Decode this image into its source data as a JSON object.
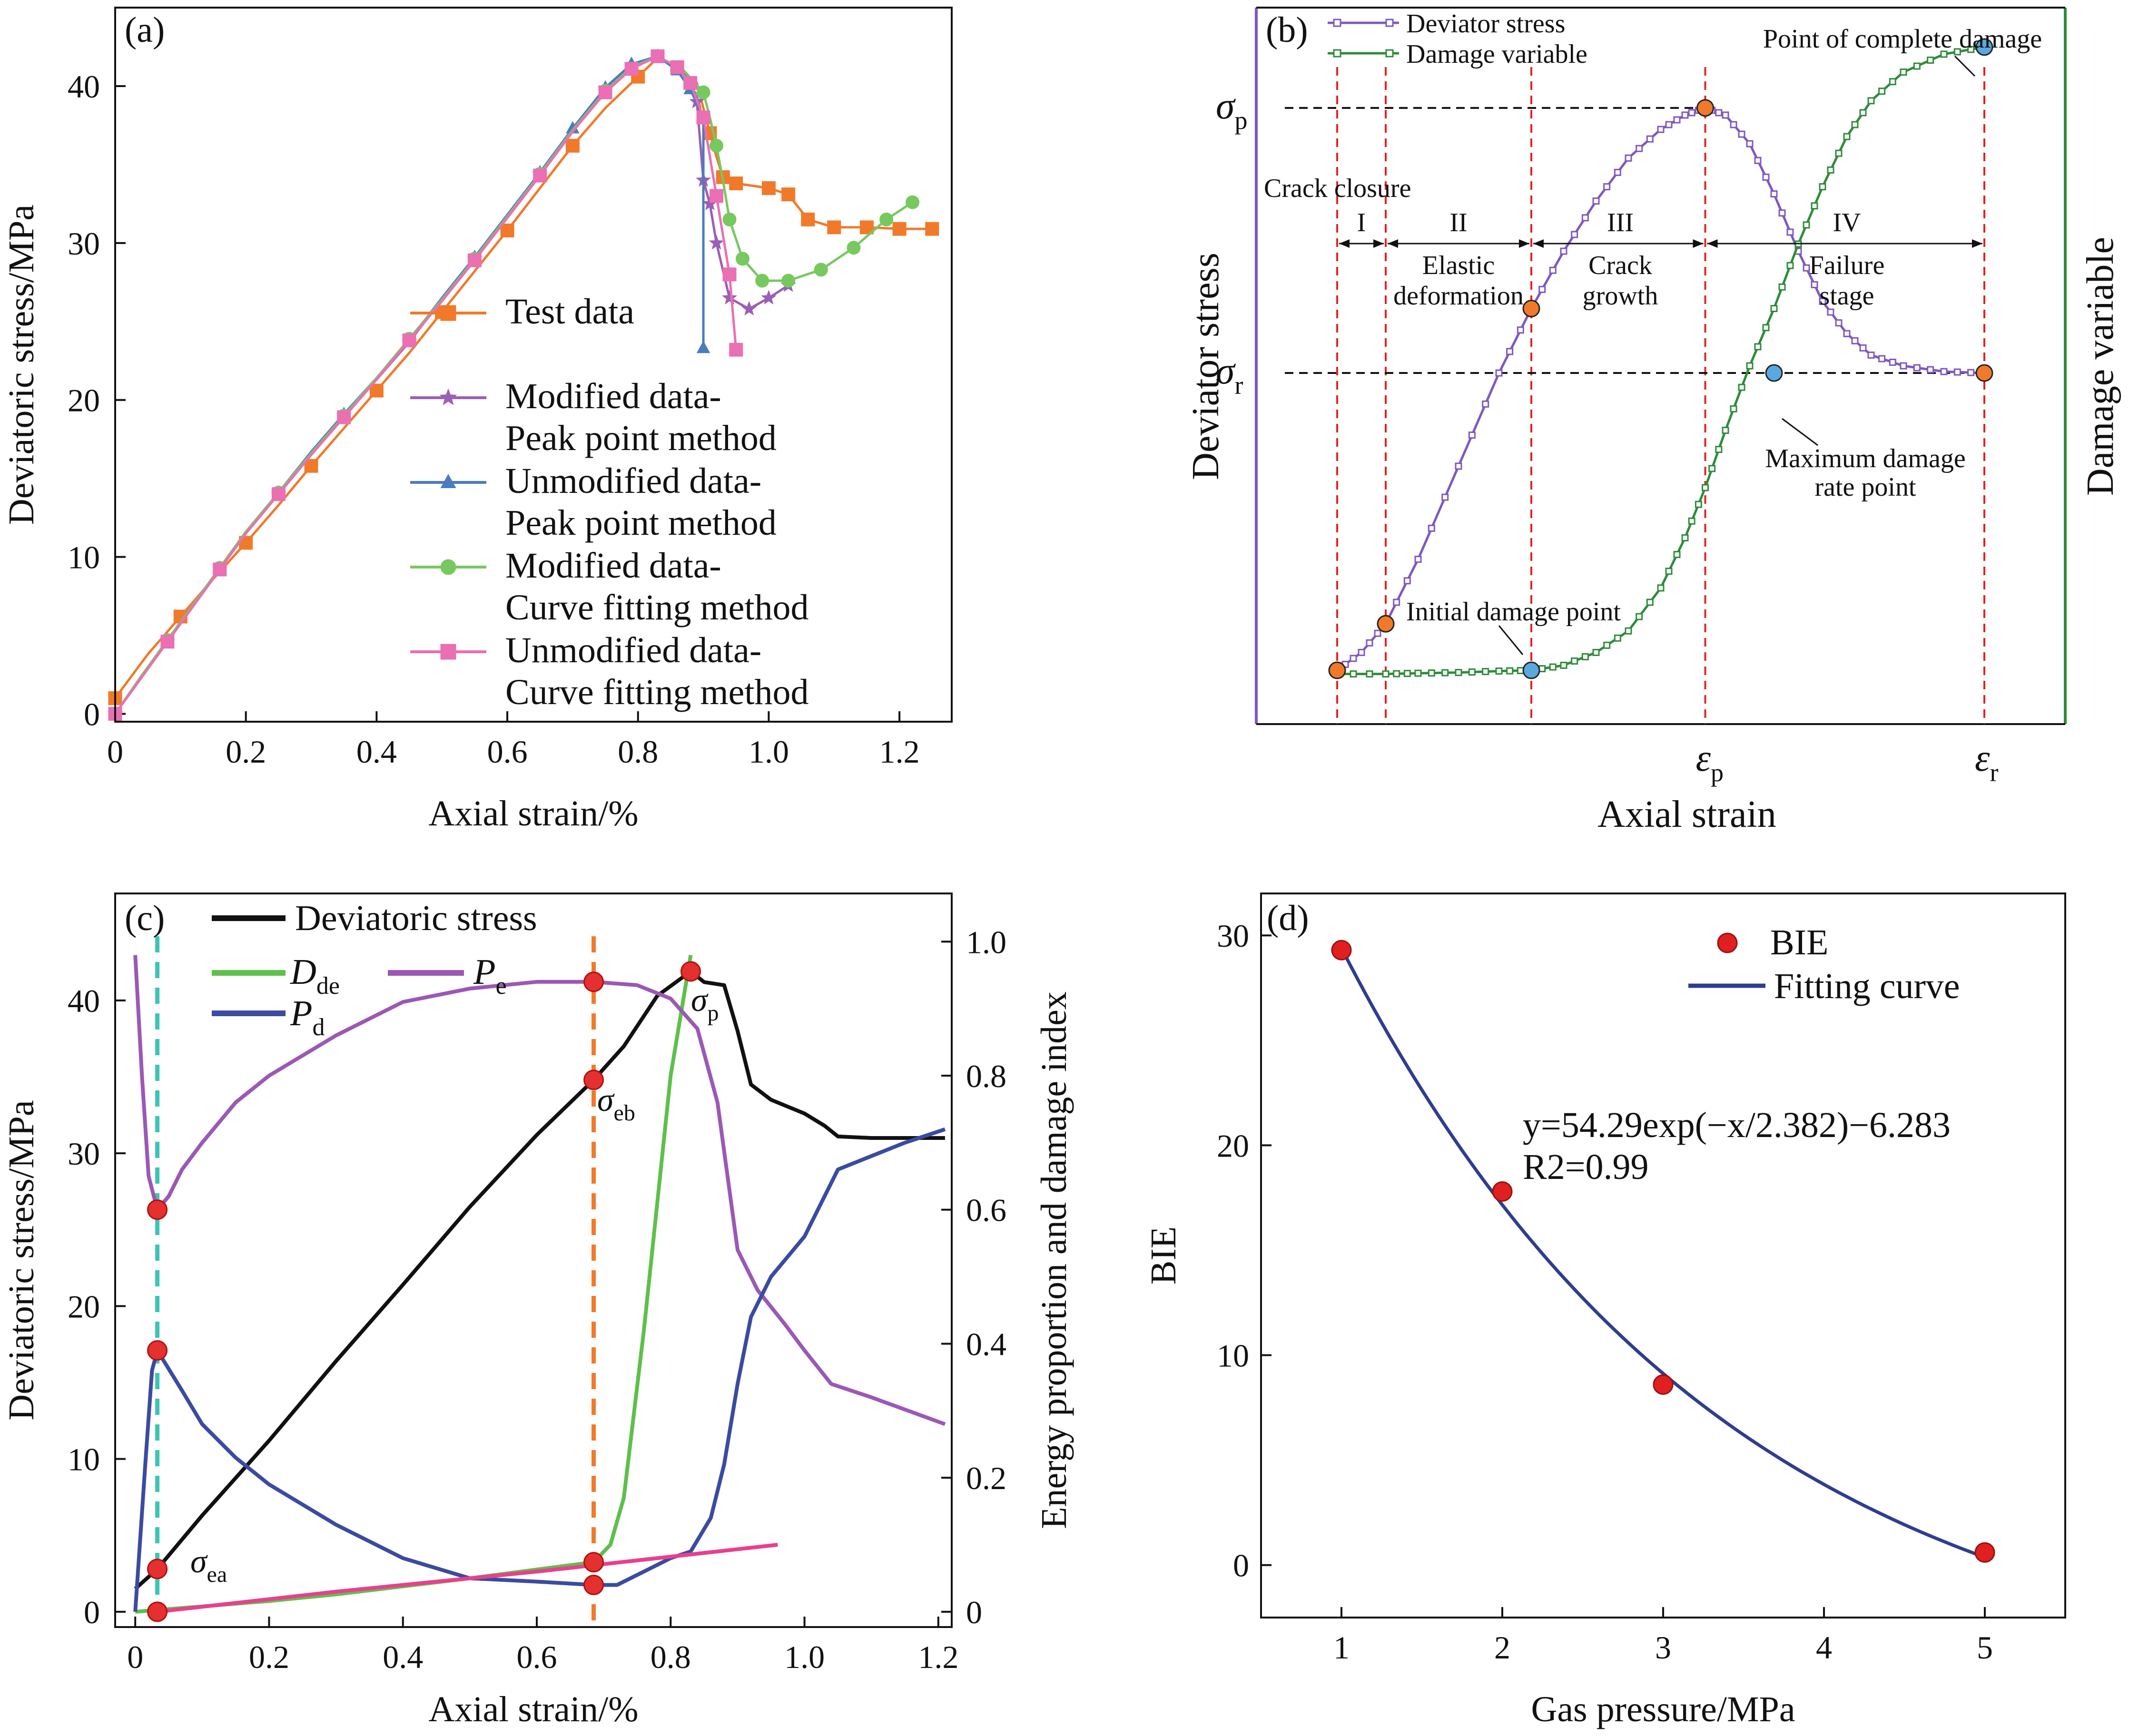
{
  "chart_data": [
    {
      "id": "a",
      "panel_label": "(a)",
      "type": "line",
      "xlabel": "Axial strain/%",
      "ylabel": "Deviatoric stress/MPa",
      "xlim": [
        0,
        1.28
      ],
      "ylim": [
        -0.5,
        45
      ],
      "xticks": [
        "0",
        "0.2",
        "0.4",
        "0.6",
        "0.8",
        "1.0",
        "1.2"
      ],
      "xtick_values": [
        0,
        0.2,
        0.4,
        0.6,
        0.8,
        1.0,
        1.2
      ],
      "yticks": [
        "0",
        "10",
        "20",
        "30",
        "40"
      ],
      "ytick_values": [
        0,
        10,
        20,
        30,
        40
      ],
      "legend": [
        {
          "line1": "Test data",
          "line2": ""
        },
        {
          "line1": "Modified data-",
          "line2": "Peak point method"
        },
        {
          "line1": "Unmodified data-",
          "line2": "Peak point method"
        },
        {
          "line1": "Modified data-",
          "line2": "Curve fitting method"
        },
        {
          "line1": "Unmodified data-",
          "line2": "Curve fitting method"
        }
      ],
      "series": [
        {
          "name": "Test data",
          "color": "#f07a2a",
          "marker": "square",
          "x": [
            0.0,
            0.05,
            0.1,
            0.15,
            0.2,
            0.25,
            0.3,
            0.35,
            0.4,
            0.45,
            0.5,
            0.55,
            0.6,
            0.65,
            0.7,
            0.75,
            0.8,
            0.83,
            0.86,
            0.89,
            0.91,
            0.92,
            0.93,
            0.95,
            1.0,
            1.03,
            1.06,
            1.1,
            1.15,
            1.2,
            1.25
          ],
          "y": [
            1.0,
            3.8,
            6.2,
            8.6,
            10.9,
            13.3,
            15.8,
            18.2,
            20.6,
            23.0,
            25.6,
            28.2,
            30.8,
            33.5,
            36.2,
            38.6,
            40.6,
            41.8,
            41.2,
            40.2,
            37.0,
            35.5,
            34.2,
            33.8,
            33.5,
            33.1,
            31.5,
            31.0,
            31.0,
            30.9,
            30.9
          ]
        },
        {
          "name": "Modified data-Peak point method",
          "color": "#9b5fb5",
          "marker": "star",
          "x": [
            0.0,
            0.04,
            0.08,
            0.12,
            0.16,
            0.2,
            0.25,
            0.3,
            0.35,
            0.4,
            0.45,
            0.5,
            0.55,
            0.6,
            0.65,
            0.7,
            0.75,
            0.79,
            0.83,
            0.87,
            0.89,
            0.9,
            0.91,
            0.92,
            0.94,
            0.97,
            1.0,
            1.03
          ],
          "y": [
            0.0,
            2.3,
            4.6,
            6.9,
            9.2,
            11.5,
            14.0,
            16.6,
            19.0,
            21.3,
            23.7,
            26.4,
            29.0,
            31.7,
            34.4,
            37.2,
            39.8,
            41.3,
            41.9,
            41.0,
            39.0,
            34.0,
            32.5,
            30.0,
            26.5,
            25.8,
            26.5,
            27.3
          ]
        },
        {
          "name": "Unmodified data-Peak point method",
          "color": "#4a7cc0",
          "marker": "triangle",
          "x": [
            0.0,
            0.04,
            0.08,
            0.12,
            0.16,
            0.2,
            0.25,
            0.3,
            0.35,
            0.4,
            0.45,
            0.5,
            0.55,
            0.6,
            0.65,
            0.7,
            0.75,
            0.79,
            0.83,
            0.86,
            0.88,
            0.9,
            0.9
          ],
          "y": [
            0.0,
            2.4,
            4.7,
            7.0,
            9.3,
            11.6,
            14.1,
            16.7,
            19.1,
            21.4,
            23.8,
            26.5,
            29.1,
            31.8,
            34.5,
            37.3,
            39.9,
            41.4,
            41.9,
            41.0,
            39.8,
            38.0,
            23.3
          ]
        },
        {
          "name": "Modified data-Curve fitting method",
          "color": "#78c860",
          "marker": "circle",
          "x": [
            0.0,
            0.04,
            0.08,
            0.12,
            0.16,
            0.2,
            0.25,
            0.3,
            0.35,
            0.4,
            0.45,
            0.5,
            0.55,
            0.6,
            0.65,
            0.7,
            0.75,
            0.79,
            0.83,
            0.87,
            0.9,
            0.91,
            0.92,
            0.93,
            0.94,
            0.96,
            0.99,
            1.03,
            1.08,
            1.13,
            1.18,
            1.22
          ],
          "y": [
            0.0,
            2.4,
            4.7,
            7.0,
            9.3,
            11.6,
            14.1,
            16.6,
            19.0,
            21.4,
            23.9,
            26.4,
            29.0,
            31.7,
            34.4,
            37.2,
            39.7,
            41.2,
            41.9,
            41.0,
            39.6,
            38.0,
            36.2,
            34.0,
            31.5,
            29.0,
            27.6,
            27.6,
            28.3,
            29.7,
            31.5,
            32.6
          ]
        },
        {
          "name": "Unmodified data-Curve fitting method",
          "color": "#ea6fb3",
          "marker": "square",
          "x": [
            0.0,
            0.04,
            0.08,
            0.12,
            0.16,
            0.2,
            0.25,
            0.3,
            0.35,
            0.4,
            0.45,
            0.5,
            0.55,
            0.6,
            0.65,
            0.7,
            0.75,
            0.79,
            0.83,
            0.86,
            0.88,
            0.9,
            0.92,
            0.94,
            0.95
          ],
          "y": [
            0.0,
            2.3,
            4.6,
            6.9,
            9.2,
            11.5,
            14.0,
            16.5,
            18.9,
            21.3,
            23.8,
            26.3,
            28.9,
            31.6,
            34.3,
            37.1,
            39.6,
            41.1,
            41.9,
            41.2,
            40.2,
            38.0,
            33.0,
            28.0,
            23.2
          ]
        }
      ]
    },
    {
      "id": "b",
      "panel_label": "(b)",
      "type": "line",
      "xlabel": "Axial strain",
      "ylabel": "Deviator stress",
      "ylabel_right": "Damage variable",
      "xlim": [
        0,
        1
      ],
      "ylim": [
        0,
        1
      ],
      "legend": [
        "Deviator stress",
        "Damage variable"
      ],
      "y_markers": [
        {
          "symbol": "σ",
          "sub": "p",
          "y": 0.86
        },
        {
          "symbol": "σ",
          "sub": "r",
          "y": 0.49
        }
      ],
      "x_markers": [
        {
          "symbol": "ε",
          "sub": "p",
          "x": 0.555
        },
        {
          "symbol": "ε",
          "sub": "r",
          "x": 0.9
        }
      ],
      "stage_boundaries_x": [
        0.1,
        0.16,
        0.34,
        0.555,
        0.9
      ],
      "stages": [
        {
          "roman": "I",
          "x": 0.13
        },
        {
          "roman": "II",
          "x": 0.25
        },
        {
          "roman": "III",
          "x": 0.45
        },
        {
          "roman": "IV",
          "x": 0.73
        }
      ],
      "stage_names": [
        "Elastic",
        "deformation",
        "Crack",
        "growth",
        "Failure",
        "stage"
      ],
      "annotations": {
        "crack_closure": "Crack closure",
        "initial_damage": "Initial damage point",
        "max_damage_rate": [
          "Maximum damage",
          "rate point"
        ],
        "complete_damage": "Point of complete damage"
      },
      "series": [
        {
          "name": "Deviator stress",
          "color": "#7e57c2",
          "x": [
            0.1,
            0.13,
            0.16,
            0.2,
            0.25,
            0.3,
            0.34,
            0.38,
            0.42,
            0.46,
            0.5,
            0.53,
            0.555,
            0.58,
            0.61,
            0.64,
            0.67,
            0.7,
            0.73,
            0.76,
            0.8,
            0.85,
            0.9
          ],
          "y": [
            0.075,
            0.1,
            0.14,
            0.23,
            0.36,
            0.49,
            0.58,
            0.66,
            0.73,
            0.79,
            0.83,
            0.85,
            0.86,
            0.85,
            0.81,
            0.74,
            0.66,
            0.59,
            0.545,
            0.515,
            0.5,
            0.492,
            0.49
          ]
        },
        {
          "name": "Damage variable",
          "color": "#2e8b3a",
          "x": [
            0.1,
            0.16,
            0.2,
            0.25,
            0.3,
            0.34,
            0.38,
            0.42,
            0.46,
            0.5,
            0.53,
            0.555,
            0.58,
            0.61,
            0.64,
            0.67,
            0.7,
            0.73,
            0.76,
            0.8,
            0.85,
            0.9
          ],
          "y": [
            0.07,
            0.07,
            0.071,
            0.072,
            0.074,
            0.075,
            0.082,
            0.1,
            0.13,
            0.19,
            0.26,
            0.33,
            0.41,
            0.5,
            0.58,
            0.67,
            0.75,
            0.82,
            0.87,
            0.91,
            0.935,
            0.945
          ]
        }
      ],
      "points": [
        {
          "series": "stress",
          "x": 0.1,
          "y": 0.075,
          "color": "#f07a2a"
        },
        {
          "series": "stress",
          "x": 0.16,
          "y": 0.14,
          "color": "#f07a2a"
        },
        {
          "series": "stress",
          "x": 0.34,
          "y": 0.58,
          "color": "#f07a2a"
        },
        {
          "series": "stress",
          "x": 0.555,
          "y": 0.86,
          "color": "#f07a2a"
        },
        {
          "series": "stress",
          "x": 0.9,
          "y": 0.49,
          "color": "#f07a2a"
        },
        {
          "series": "damage",
          "x": 0.34,
          "y": 0.075,
          "color": "#5aa8e0"
        },
        {
          "series": "damage",
          "x": 0.64,
          "y": 0.49,
          "color": "#5aa8e0"
        },
        {
          "series": "damage",
          "x": 0.9,
          "y": 0.945,
          "color": "#5aa8e0"
        }
      ]
    },
    {
      "id": "c",
      "panel_label": "(c)",
      "type": "line",
      "xlabel": "Axial strain/%",
      "ylabel": "Deviatoric stress/MPa",
      "ylabel_right": "Energy proportion and damage index",
      "xlim": [
        -0.03,
        1.22
      ],
      "ylim": [
        -1,
        47
      ],
      "ylim_right": [
        -0.0228,
        1.0719
      ],
      "xticks": [
        "0",
        "0.2",
        "0.4",
        "0.6",
        "0.8",
        "1.0",
        "1.2"
      ],
      "xtick_values": [
        0,
        0.2,
        0.4,
        0.6,
        0.8,
        1.0,
        1.2
      ],
      "yticks": [
        "0",
        "10",
        "20",
        "30",
        "40"
      ],
      "ytick_values": [
        0,
        10,
        20,
        30,
        40
      ],
      "yticks_right": [
        "0",
        "0.2",
        "0.4",
        "0.6",
        "0.8",
        "1.0"
      ],
      "ytick_values_right": [
        0,
        0.2,
        0.4,
        0.6,
        0.8,
        1.0
      ],
      "legend": [
        {
          "symbol": "Deviatoric stress",
          "sub": ""
        },
        {
          "symbol": "D",
          "sub": "de"
        },
        {
          "symbol": "P",
          "sub": "e"
        },
        {
          "symbol": "P",
          "sub": "d"
        }
      ],
      "vlines": [
        {
          "x": 0.033,
          "color": "#3cc4b4"
        },
        {
          "x": 0.685,
          "color": "#f07a2a"
        }
      ],
      "point_labels": [
        {
          "symbol": "σ",
          "sub": "ea",
          "x": 0.033,
          "y": 2.8
        },
        {
          "symbol": "σ",
          "sub": "eb",
          "x": 0.685,
          "y": 34.8
        },
        {
          "symbol": "σ",
          "sub": "p",
          "x": 0.83,
          "y": 41.9
        }
      ],
      "series": [
        {
          "name": "Deviatoric stress",
          "axis": "left",
          "color": "#111111",
          "x": [
            0.0,
            0.033,
            0.1,
            0.2,
            0.3,
            0.4,
            0.5,
            0.6,
            0.685,
            0.73,
            0.78,
            0.83,
            0.85,
            0.88,
            0.9,
            0.92,
            0.95,
            1.0,
            1.03,
            1.05,
            1.1,
            1.15,
            1.21
          ],
          "y": [
            1.5,
            2.8,
            6.3,
            11.2,
            16.4,
            21.4,
            26.5,
            31.2,
            34.8,
            37.0,
            40.3,
            41.9,
            41.2,
            41.0,
            38.0,
            34.5,
            33.5,
            32.6,
            31.8,
            31.1,
            31.0,
            31.0,
            31.0
          ]
        },
        {
          "name": "D_de",
          "axis": "right",
          "color": "#5ec04a",
          "x": [
            0.0,
            0.1,
            0.2,
            0.3,
            0.4,
            0.5,
            0.6,
            0.685,
            0.71,
            0.73,
            0.76,
            0.8,
            0.83
          ],
          "y": [
            0.0,
            0.008,
            0.016,
            0.026,
            0.038,
            0.05,
            0.063,
            0.074,
            0.1,
            0.17,
            0.42,
            0.8,
            0.98
          ]
        },
        {
          "name": "P_e",
          "axis": "right",
          "color": "#9b58b5",
          "x": [
            0.0,
            0.01,
            0.02,
            0.033,
            0.05,
            0.07,
            0.1,
            0.15,
            0.2,
            0.3,
            0.4,
            0.5,
            0.6,
            0.685,
            0.75,
            0.8,
            0.84,
            0.87,
            0.9,
            0.93,
            0.97,
            1.0,
            1.04,
            1.1,
            1.21
          ],
          "y": [
            0.98,
            0.8,
            0.65,
            0.6,
            0.62,
            0.66,
            0.7,
            0.76,
            0.8,
            0.86,
            0.91,
            0.93,
            0.94,
            0.94,
            0.935,
            0.915,
            0.87,
            0.76,
            0.54,
            0.48,
            0.43,
            0.39,
            0.34,
            0.32,
            0.28
          ]
        },
        {
          "name": "P_d",
          "axis": "right",
          "color": "#3a4ba0",
          "x": [
            0.0,
            0.015,
            0.025,
            0.033,
            0.07,
            0.1,
            0.15,
            0.2,
            0.3,
            0.4,
            0.5,
            0.6,
            0.685,
            0.72,
            0.76,
            0.8,
            0.83,
            0.86,
            0.88,
            0.9,
            0.92,
            0.95,
            1.0,
            1.05,
            1.1,
            1.15,
            1.21
          ],
          "y": [
            0.0,
            0.22,
            0.36,
            0.39,
            0.33,
            0.28,
            0.23,
            0.19,
            0.13,
            0.08,
            0.05,
            0.045,
            0.04,
            0.04,
            0.06,
            0.08,
            0.09,
            0.14,
            0.22,
            0.34,
            0.44,
            0.5,
            0.56,
            0.66,
            0.68,
            0.7,
            0.72
          ]
        },
        {
          "name": "damage index",
          "axis": "right",
          "color": "#e8408e",
          "x": [
            0.033,
            0.3,
            0.6,
            0.96
          ],
          "y": [
            0.0,
            0.03,
            0.06,
            0.1
          ]
        }
      ],
      "points": [
        {
          "axis": "left",
          "x": 0.033,
          "y": 2.8
        },
        {
          "axis": "left",
          "x": 0.685,
          "y": 34.8
        },
        {
          "axis": "left",
          "x": 0.83,
          "y": 41.9
        },
        {
          "axis": "right",
          "x": 0.033,
          "y": 0.0
        },
        {
          "axis": "right",
          "x": 0.033,
          "y": 0.39
        },
        {
          "axis": "right",
          "x": 0.033,
          "y": 0.6
        },
        {
          "axis": "right",
          "x": 0.685,
          "y": 0.04
        },
        {
          "axis": "right",
          "x": 0.685,
          "y": 0.074
        },
        {
          "axis": "right",
          "x": 0.685,
          "y": 0.94
        }
      ]
    },
    {
      "id": "d",
      "panel_label": "(d)",
      "type": "scatter",
      "xlabel": "Gas pressure/MPa",
      "ylabel": "BIE",
      "xlim": [
        0.5,
        5.5
      ],
      "ylim": [
        -2.5,
        32
      ],
      "xticks": [
        "1",
        "2",
        "3",
        "4",
        "5"
      ],
      "xtick_values": [
        1,
        2,
        3,
        4,
        5
      ],
      "yticks": [
        "0",
        "10",
        "20",
        "30"
      ],
      "ytick_values": [
        0,
        10,
        20,
        30
      ],
      "legend": [
        "BIE",
        "Fitting curve"
      ],
      "equation": "y=54.29exp(−x/2.382)−6.283",
      "r_squared": "R2=0.99",
      "fit": {
        "a": 54.29,
        "t": 2.382,
        "c": -6.283,
        "x0": 1,
        "x1": 5
      },
      "series": [
        {
          "name": "BIE",
          "color": "#e02020",
          "x": [
            1,
            2,
            3,
            5
          ],
          "y": [
            29.3,
            17.8,
            8.6,
            0.6
          ]
        }
      ]
    }
  ]
}
